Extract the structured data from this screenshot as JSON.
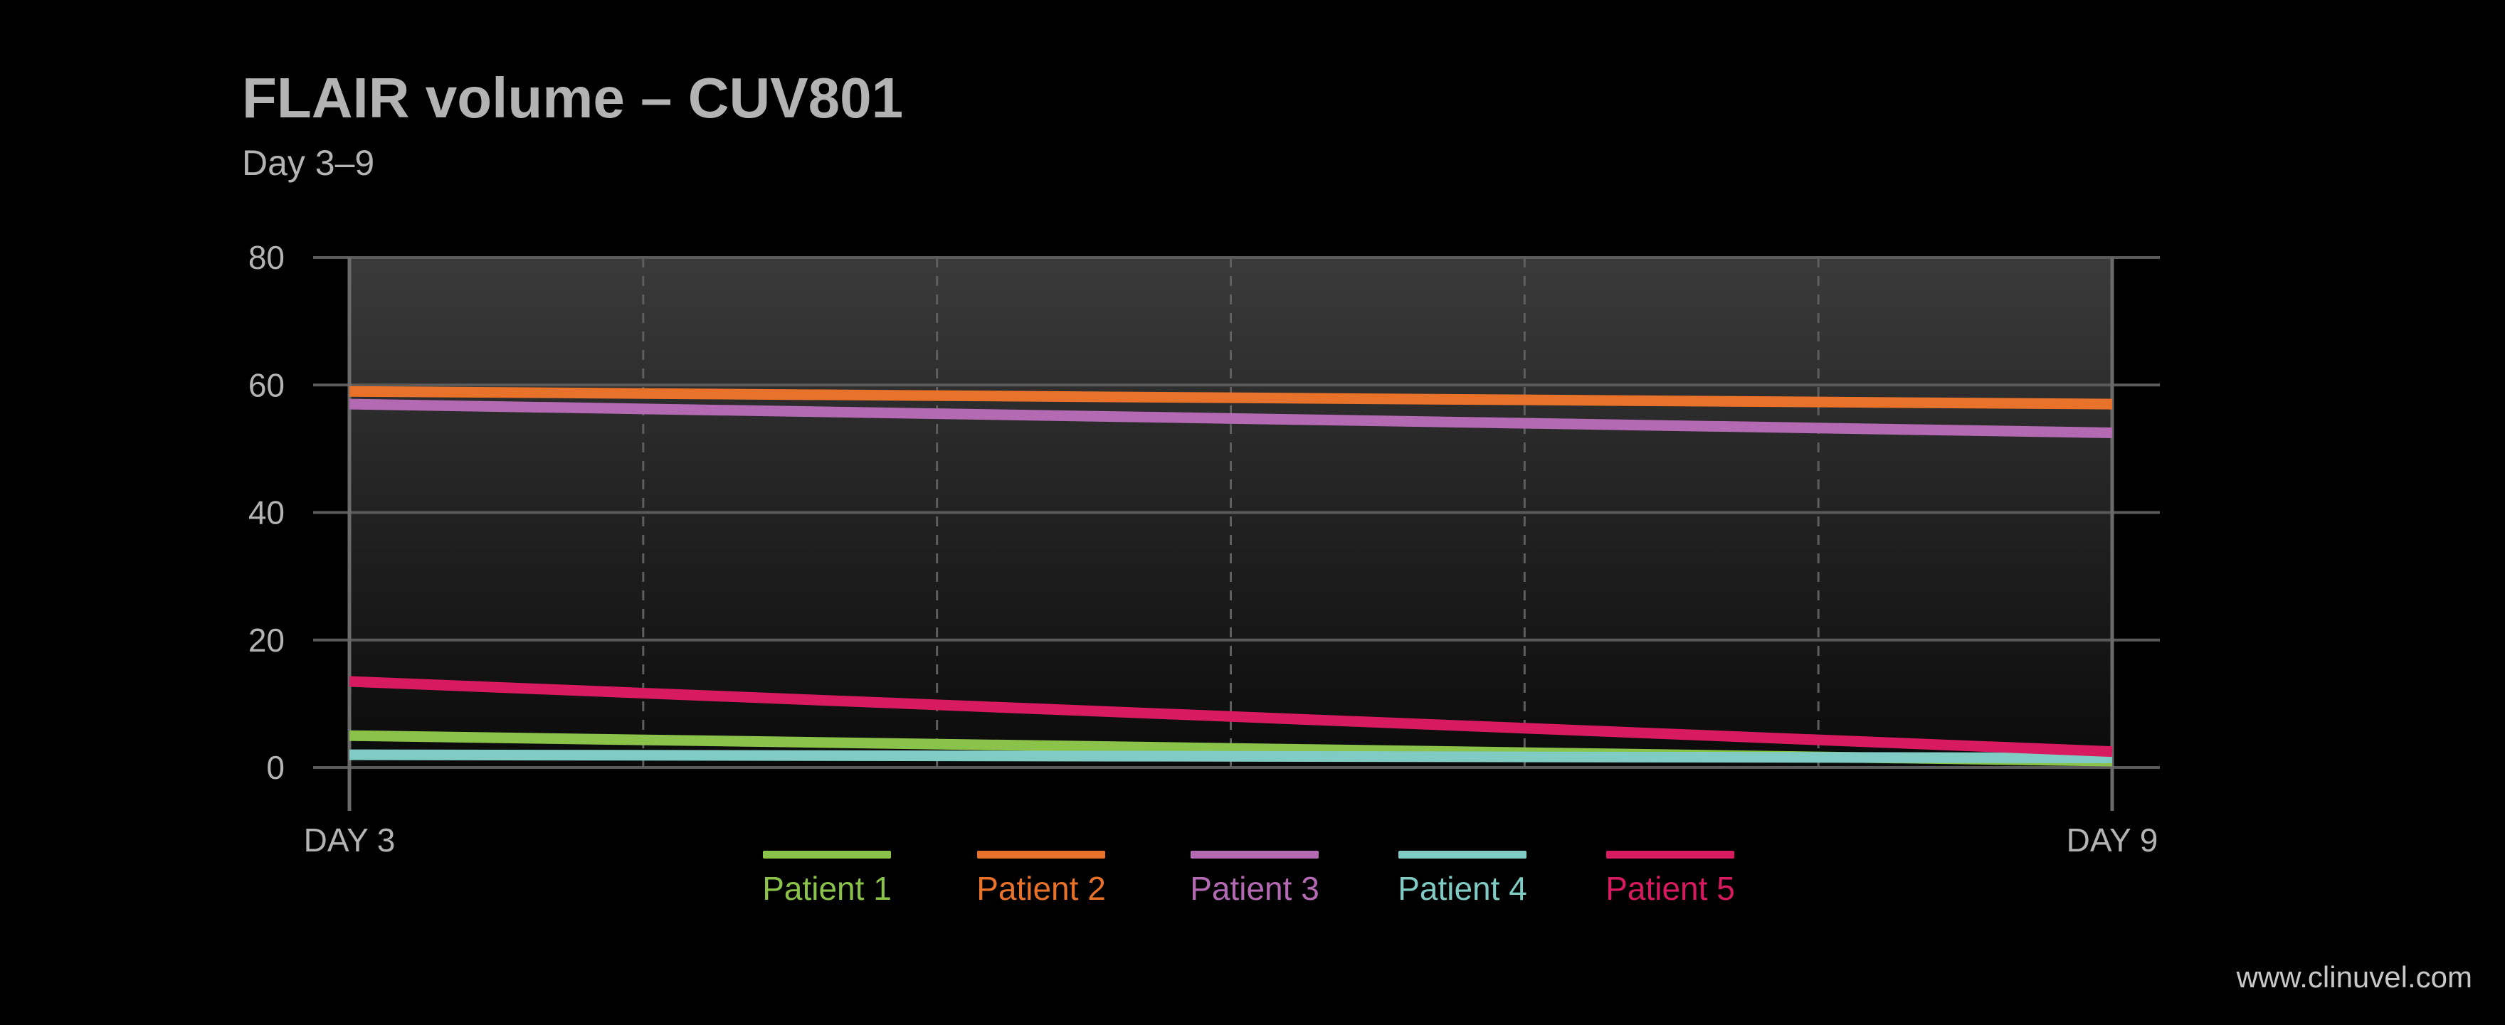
{
  "title": "FLAIR volume – CUV801",
  "subtitle": "Day 3–9",
  "watermark": "www.clinuvel.com",
  "colors": {
    "background": "#000000",
    "plot_top": "#3a3a3a",
    "plot_bottom": "#0a0a0a",
    "text": "#b3b3b3",
    "grid": "#5a5a5a"
  },
  "chart_data": {
    "type": "line",
    "title": "FLAIR volume – CUV801",
    "subtitle": "Day 3–9",
    "x": [
      "DAY 3",
      "DAY 9"
    ],
    "x_tick_labels": [
      "DAY 3",
      "DAY 9"
    ],
    "ylim": [
      0,
      80
    ],
    "y_ticks": [
      0,
      20,
      40,
      60,
      80
    ],
    "y_tick_labels": [
      "0",
      "20",
      "40",
      "60",
      "80"
    ],
    "grid": true,
    "legend_position": "bottom",
    "series": [
      {
        "name": "Patient 1",
        "color": "#8bc34a",
        "values": [
          5,
          1
        ]
      },
      {
        "name": "Patient 2",
        "color": "#e8722a",
        "values": [
          59,
          57
        ]
      },
      {
        "name": "Patient 3",
        "color": "#b36ab3",
        "values": [
          57,
          52.5
        ]
      },
      {
        "name": "Patient 4",
        "color": "#80cbc4",
        "values": [
          2,
          1.5
        ]
      },
      {
        "name": "Patient 5",
        "color": "#d81b60",
        "values": [
          13.5,
          2.5
        ]
      }
    ]
  }
}
